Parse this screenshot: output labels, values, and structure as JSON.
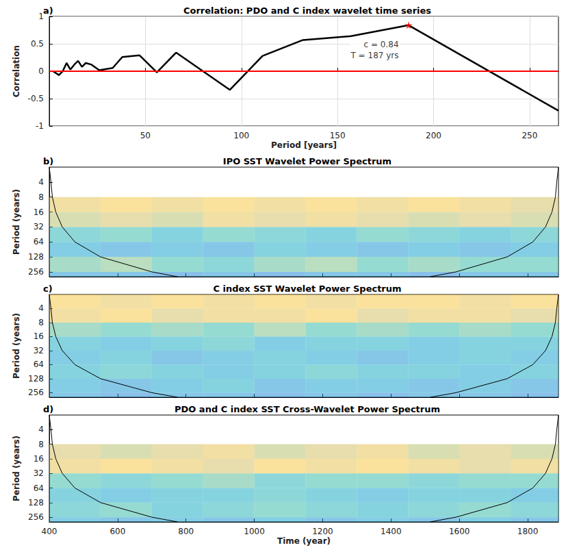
{
  "chart_data": [
    {
      "type": "line",
      "panel_label": "a)",
      "title": "Correlation: PDO and C index wavelet time series",
      "x_label": "Period [years]",
      "y_label": "Correlation",
      "xlim": [
        0,
        265
      ],
      "xticks": [
        50,
        100,
        150,
        200,
        250
      ],
      "ylim": [
        -1,
        1
      ],
      "yticks": [
        -1,
        -0.5,
        0,
        0.5,
        1
      ],
      "grid": true,
      "series": [
        {
          "name": "Correlation",
          "color": "#000000",
          "line_style": "solid",
          "marker": "none",
          "x": [
            2,
            5,
            7,
            9,
            11,
            13,
            15,
            17,
            19,
            22,
            26,
            33,
            38,
            47,
            56,
            66,
            94,
            111,
            132,
            157,
            187,
            265
          ],
          "values": [
            0,
            -0.07,
            0.0,
            0.15,
            0.03,
            0.12,
            0.19,
            0.08,
            0.15,
            0.12,
            0.02,
            0.06,
            0.26,
            0.29,
            -0.02,
            0.34,
            -0.34,
            0.28,
            0.57,
            0.64,
            0.84,
            -0.72
          ]
        }
      ],
      "reference_line": {
        "value": 0,
        "color": "#ff0000"
      },
      "highlight": {
        "x": 187,
        "y": 0.84,
        "marker": "star",
        "color": "#ff0000",
        "annotation": [
          "c = 0.84",
          "T = 187 yrs"
        ]
      }
    },
    {
      "type": "heatmap",
      "panel_label": "b)",
      "title": "IPO SST Wavelet Power Spectrum",
      "y_label": "Period (years)",
      "xlim": [
        400,
        1890
      ],
      "xticks": [
        400,
        600,
        800,
        1000,
        1200,
        1400,
        1600,
        1800
      ],
      "ylim": [
        2,
        320
      ],
      "yticks": [
        4,
        8,
        16,
        32,
        64,
        128,
        256
      ],
      "log": "y",
      "tick_labels": "y",
      "x_edges": [
        400,
        550,
        700,
        850,
        1000,
        1150,
        1300,
        1450,
        1600,
        1750,
        1890
      ],
      "y_edges": [
        2,
        4,
        8,
        16,
        32,
        64,
        128,
        256,
        320
      ],
      "color_range": [
        0,
        1
      ],
      "cells": [
        [
          null,
          null,
          null,
          null,
          null,
          null,
          null,
          null,
          null,
          null
        ],
        [
          null,
          null,
          null,
          null,
          null,
          null,
          null,
          null,
          null,
          null
        ],
        [
          0.8,
          0.85,
          0.8,
          0.85,
          0.8,
          0.85,
          0.8,
          0.85,
          0.8,
          0.75
        ],
        [
          0.7,
          0.75,
          0.7,
          0.8,
          0.75,
          0.8,
          0.75,
          0.7,
          0.75,
          0.7
        ],
        [
          0.45,
          0.5,
          0.4,
          0.5,
          0.45,
          0.4,
          0.5,
          0.45,
          0.4,
          0.45
        ],
        [
          0.35,
          0.3,
          0.35,
          0.3,
          0.4,
          0.35,
          0.3,
          0.35,
          0.3,
          0.35
        ],
        [
          0.55,
          0.6,
          0.5,
          0.45,
          0.55,
          0.6,
          0.5,
          0.55,
          0.5,
          0.5
        ],
        [
          0.3,
          0.3,
          0.25,
          0.3,
          0.25,
          0.3,
          0.3,
          0.25,
          0.3,
          0.3
        ]
      ],
      "coi": {
        "color": "#000000",
        "left": {
          "x": [
            400,
            405,
            409,
            419,
            438,
            475,
            550,
            700,
            775
          ],
          "y": [
            2,
            4,
            8,
            16,
            32,
            64,
            128,
            256,
            320
          ]
        },
        "right": {
          "x": [
            1890,
            1885,
            1881,
            1871,
            1852,
            1815,
            1740,
            1590,
            1515
          ],
          "y": [
            2,
            4,
            8,
            16,
            32,
            64,
            128,
            256,
            320
          ]
        }
      }
    },
    {
      "type": "heatmap",
      "panel_label": "c)",
      "title": "C index SST Wavelet Power Spectrum",
      "y_label": "Period (years)",
      "xlim": [
        400,
        1890
      ],
      "xticks": [
        400,
        600,
        800,
        1000,
        1200,
        1400,
        1600,
        1800
      ],
      "ylim": [
        2,
        320
      ],
      "yticks": [
        4,
        8,
        16,
        32,
        64,
        128,
        256
      ],
      "log": "y",
      "tick_labels": "y",
      "x_edges": [
        400,
        550,
        700,
        850,
        1000,
        1150,
        1300,
        1450,
        1600,
        1750,
        1890
      ],
      "y_edges": [
        2,
        4,
        8,
        16,
        32,
        64,
        128,
        256,
        320
      ],
      "color_range": [
        0,
        1
      ],
      "cells": [
        [
          0.85,
          0.8,
          0.85,
          0.8,
          0.85,
          0.8,
          0.85,
          0.85,
          0.8,
          0.85
        ],
        [
          0.8,
          0.85,
          0.75,
          0.8,
          0.8,
          0.85,
          0.75,
          0.8,
          0.8,
          0.75
        ],
        [
          0.55,
          0.5,
          0.55,
          0.5,
          0.6,
          0.5,
          0.55,
          0.5,
          0.55,
          0.5
        ],
        [
          0.4,
          0.35,
          0.4,
          0.45,
          0.35,
          0.4,
          0.4,
          0.35,
          0.4,
          0.4
        ],
        [
          0.35,
          0.4,
          0.3,
          0.35,
          0.4,
          0.35,
          0.3,
          0.35,
          0.4,
          0.35
        ],
        [
          0.4,
          0.45,
          0.4,
          0.35,
          0.4,
          0.45,
          0.4,
          0.4,
          0.35,
          0.4
        ],
        [
          0.35,
          0.3,
          0.35,
          0.4,
          0.3,
          0.35,
          0.35,
          0.3,
          0.35,
          0.3
        ],
        [
          0.3,
          0.25,
          0.3,
          0.3,
          0.25,
          0.3,
          0.25,
          0.3,
          0.3,
          0.25
        ]
      ],
      "coi": {
        "color": "#000000",
        "left": {
          "x": [
            400,
            405,
            409,
            419,
            438,
            475,
            550,
            700,
            775
          ],
          "y": [
            2,
            4,
            8,
            16,
            32,
            64,
            128,
            256,
            320
          ]
        },
        "right": {
          "x": [
            1890,
            1885,
            1881,
            1871,
            1852,
            1815,
            1740,
            1590,
            1515
          ],
          "y": [
            2,
            4,
            8,
            16,
            32,
            64,
            128,
            256,
            320
          ]
        }
      }
    },
    {
      "type": "heatmap",
      "panel_label": "d)",
      "title": "PDO and C index SST Cross-Wavelet Power Spectrum",
      "x_label": "Time (year)",
      "y_label": "Period (years)",
      "xlim": [
        400,
        1890
      ],
      "xticks": [
        400,
        600,
        800,
        1000,
        1200,
        1400,
        1600,
        1800
      ],
      "ylim": [
        2,
        320
      ],
      "yticks": [
        4,
        8,
        16,
        32,
        64,
        128,
        256
      ],
      "log": "y",
      "x_edges": [
        400,
        550,
        700,
        850,
        1000,
        1150,
        1300,
        1450,
        1600,
        1750,
        1890
      ],
      "y_edges": [
        2,
        4,
        8,
        16,
        32,
        64,
        128,
        256,
        320
      ],
      "color_range": [
        0,
        1
      ],
      "cells": [
        [
          null,
          null,
          null,
          null,
          null,
          null,
          null,
          null,
          null,
          null
        ],
        [
          null,
          null,
          null,
          null,
          null,
          null,
          null,
          null,
          null,
          null
        ],
        [
          0.75,
          0.7,
          0.75,
          0.8,
          0.7,
          0.75,
          0.8,
          0.7,
          0.75,
          0.7
        ],
        [
          0.8,
          0.85,
          0.8,
          0.75,
          0.85,
          0.8,
          0.85,
          0.8,
          0.75,
          0.8
        ],
        [
          0.5,
          0.45,
          0.5,
          0.55,
          0.45,
          0.5,
          0.5,
          0.45,
          0.5,
          0.5
        ],
        [
          0.4,
          0.35,
          0.4,
          0.4,
          0.45,
          0.4,
          0.35,
          0.4,
          0.4,
          0.35
        ],
        [
          0.45,
          0.5,
          0.4,
          0.45,
          0.5,
          0.45,
          0.4,
          0.45,
          0.5,
          0.45
        ],
        [
          0.35,
          0.3,
          0.35,
          0.3,
          0.35,
          0.3,
          0.35,
          0.3,
          0.35,
          0.3
        ]
      ],
      "coi": {
        "color": "#000000",
        "left": {
          "x": [
            400,
            405,
            409,
            419,
            438,
            475,
            550,
            700,
            775
          ],
          "y": [
            2,
            4,
            8,
            16,
            32,
            64,
            128,
            256,
            320
          ]
        },
        "right": {
          "x": [
            1890,
            1885,
            1881,
            1871,
            1852,
            1815,
            1740,
            1590,
            1515
          ],
          "y": [
            2,
            4,
            8,
            16,
            32,
            64,
            128,
            256,
            320
          ]
        }
      }
    }
  ]
}
